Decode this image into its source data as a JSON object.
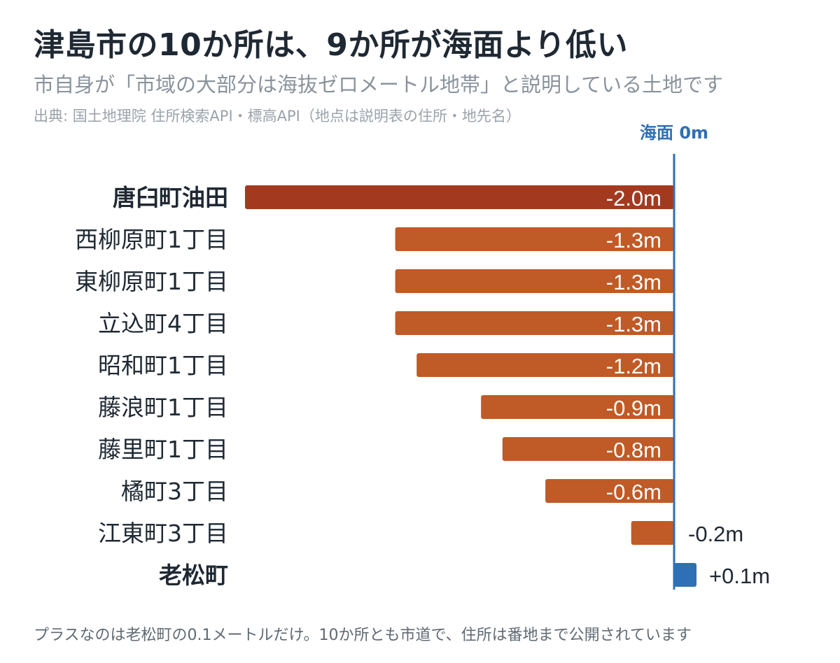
{
  "header": {
    "title": "津島市の10か所は、9か所が海面より低い",
    "subtitle": "市自身が「市域の大部分は海抜ゼロメートル地帯」と説明している土地です",
    "source": "出典: 国土地理院 住所検索API・標高API（地点は説明表の住所・地先名）"
  },
  "footer": {
    "note": "プラスなのは老松町の0.1メートルだけ。10か所とも市道で、住所は番地まで公開されています"
  },
  "colors": {
    "highlight_bar": "#a33a20",
    "bar": "#c05a26",
    "positive_bar": "#2f6fb5",
    "zero_line": "#2f6fb5",
    "inner_label": "#ffffff",
    "outer_label": "#1f2933"
  },
  "chart_data": {
    "type": "bar",
    "orientation": "horizontal",
    "categories": [
      "唐臼町油田",
      "西柳原町1丁目",
      "東柳原町1丁目",
      "立込町4丁目",
      "昭和町1丁目",
      "藤浪町1丁目",
      "藤里町1丁目",
      "橘町3丁目",
      "江東町3丁目",
      "老松町"
    ],
    "values": [
      -2.0,
      -1.3,
      -1.3,
      -1.3,
      -1.2,
      -0.9,
      -0.8,
      -0.6,
      -0.2,
      0.1
    ],
    "value_labels": [
      "-2.0m",
      "-1.3m",
      "-1.3m",
      "-1.3m",
      "-1.2m",
      "-0.9m",
      "-0.8m",
      "-0.6m",
      "-0.2m",
      "+0.1m"
    ],
    "bold_categories": [
      "唐臼町油田",
      "老松町"
    ],
    "reference_line": {
      "value": 0,
      "label": "海面 0m"
    },
    "xlim": [
      -2.0,
      0.1
    ],
    "unit": "m",
    "grid": false,
    "legend": "none"
  }
}
